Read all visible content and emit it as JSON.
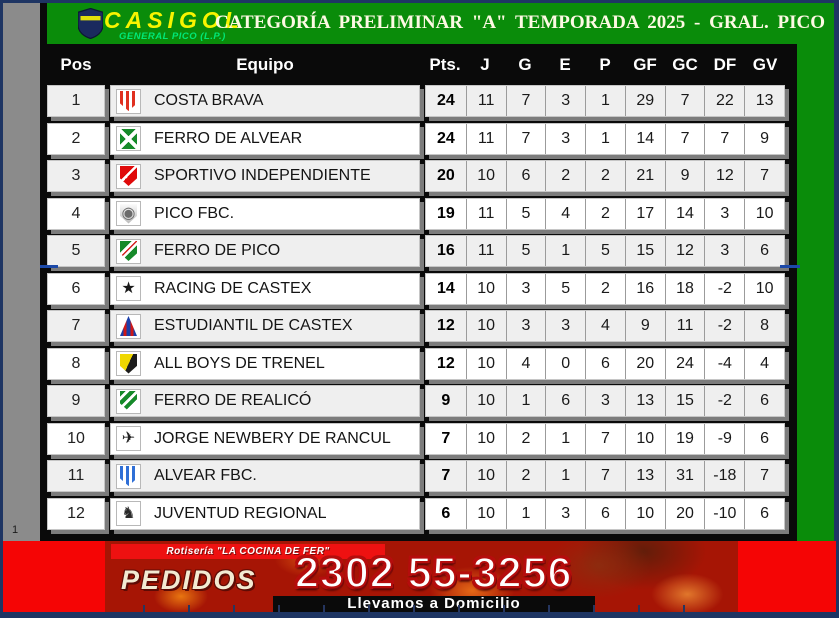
{
  "window": {
    "row_indicator": "1"
  },
  "header": {
    "brand": "CASIGOL",
    "brand_sub": "GENERAL PICO (L.P.)",
    "title": "CATEGORÍA PRELIMINAR \"A\" TEMPORADA 2025 - GRAL. PICO"
  },
  "colors": {
    "band_green": "#0a8c0a",
    "frame_navy": "#1e3563",
    "banner_red": "#f50505",
    "row_alt": "#efefef",
    "brand_yellow": "#f8f400",
    "brand_sub_green": "#00e878"
  },
  "table": {
    "columns": [
      "Pos",
      "Equipo",
      "Pts.",
      "J",
      "G",
      "E",
      "P",
      "GF",
      "GC",
      "DF",
      "GV"
    ],
    "rows": [
      {
        "pos": 1,
        "team": "COSTA BRAVA",
        "pts": 24,
        "j": 11,
        "g": 7,
        "e": 3,
        "p": 1,
        "gf": 29,
        "gc": 7,
        "df": 22,
        "gv": 13,
        "badge": {
          "icon": "costa-brava-badge",
          "shape": "shield",
          "bg": "repeating-linear-gradient(90deg,#e03020 0 3px,#ffffff 3px 6px)"
        }
      },
      {
        "pos": 2,
        "team": "FERRO DE ALVEAR",
        "pts": 24,
        "j": 11,
        "g": 7,
        "e": 3,
        "p": 1,
        "gf": 14,
        "gc": 7,
        "df": 7,
        "gv": 9,
        "badge": {
          "icon": "ferro-de-alvear-badge",
          "shape": "square",
          "bg": "linear-gradient(45deg, rgba(255,255,255,0) 43%, #ffffff 43% 57%, rgba(255,255,255,0) 57%), linear-gradient(135deg, rgba(255,255,255,0) 43%, #ffffff 43% 57%, rgba(255,255,255,0) 57%), #168a2a"
        }
      },
      {
        "pos": 3,
        "team": "SPORTIVO INDEPENDIENTE",
        "pts": 20,
        "j": 10,
        "g": 6,
        "e": 2,
        "p": 2,
        "gf": 21,
        "gc": 9,
        "df": 12,
        "gv": 7,
        "badge": {
          "icon": "sportivo-independiente-badge",
          "shape": "shield",
          "bg": "linear-gradient(135deg,#e00a0a 0 40%,#ffffff 40% 50%,#e00a0a 50% 100%)"
        }
      },
      {
        "pos": 4,
        "team": "PICO FBC.",
        "pts": 19,
        "j": 11,
        "g": 5,
        "e": 4,
        "p": 2,
        "gf": 17,
        "gc": 14,
        "df": 3,
        "gv": 10,
        "badge": {
          "icon": "pico-fbc-badge",
          "shape": "shield",
          "bg": "linear-gradient(#fbfbfb,#b9b9b9)",
          "glyph": "◉",
          "glyphColor": "#6b6b6b"
        }
      },
      {
        "pos": 5,
        "team": "FERRO DE PICO",
        "pts": 16,
        "j": 11,
        "g": 5,
        "e": 1,
        "p": 5,
        "gf": 15,
        "gc": 12,
        "df": 3,
        "gv": 6,
        "badge": {
          "icon": "ferro-de-pico-badge",
          "shape": "shield",
          "bg": "linear-gradient(135deg,#168a2a 0 32%,#ffffff 32% 42%,#d42020 42% 48%,#ffffff 48% 58%,#168a2a 58% 100%)"
        }
      },
      {
        "pos": 6,
        "team": "RACING DE CASTEX",
        "pts": 14,
        "j": 10,
        "g": 3,
        "e": 5,
        "p": 2,
        "gf": 16,
        "gc": 18,
        "df": -2,
        "gv": 10,
        "badge": {
          "icon": "racing-de-castex-badge",
          "shape": "square",
          "bg": "#ffffff",
          "glyph": "★",
          "glyphColor": "#1a1a1a"
        }
      },
      {
        "pos": 7,
        "team": "ESTUDIANTIL DE CASTEX",
        "pts": 12,
        "j": 10,
        "g": 3,
        "e": 3,
        "p": 4,
        "gf": 9,
        "gc": 11,
        "df": -2,
        "gv": 8,
        "badge": {
          "icon": "estudiantil-de-castex-badge",
          "shape": "triangle",
          "bg": "linear-gradient(90deg,#1b3faa 0 22%,#cf1818 22% 39%,#1b3faa 39% 61%,#cf1818 61% 78%,#1b3faa 78% 100%)"
        }
      },
      {
        "pos": 8,
        "team": "ALL BOYS DE TRENEL",
        "pts": 12,
        "j": 10,
        "g": 4,
        "e": 0,
        "p": 6,
        "gf": 20,
        "gc": 24,
        "df": -4,
        "gv": 4,
        "badge": {
          "icon": "all-boys-de-trenel-badge",
          "shape": "shield",
          "bg": "linear-gradient(115deg,#f0d800 0 50%,#1c1c1c 50% 100%)"
        }
      },
      {
        "pos": 9,
        "team": "FERRO DE REALICÓ",
        "pts": 9,
        "j": 10,
        "g": 1,
        "e": 6,
        "p": 3,
        "gf": 13,
        "gc": 15,
        "df": -2,
        "gv": 6,
        "badge": {
          "icon": "ferro-de-realico-badge",
          "shape": "shield",
          "bg": "repeating-linear-gradient(135deg,#168a2a 0 4px,#ffffff 4px 7px)"
        }
      },
      {
        "pos": 10,
        "team": "JORGE NEWBERY DE RANCUL",
        "pts": 7,
        "j": 10,
        "g": 2,
        "e": 1,
        "p": 7,
        "gf": 10,
        "gc": 19,
        "df": -9,
        "gv": 6,
        "badge": {
          "icon": "jorge-newbery-badge",
          "shape": "square",
          "bg": "#ffffff",
          "glyph": "✈",
          "glyphColor": "#222222"
        }
      },
      {
        "pos": 11,
        "team": "ALVEAR FBC.",
        "pts": 7,
        "j": 10,
        "g": 2,
        "e": 1,
        "p": 7,
        "gf": 13,
        "gc": 31,
        "df": -18,
        "gv": 7,
        "badge": {
          "icon": "alvear-fbc-badge",
          "shape": "shield",
          "bg": "repeating-linear-gradient(90deg,#2f6fd6 0 3px,#ffffff 3px 6px)"
        }
      },
      {
        "pos": 12,
        "team": "JUVENTUD REGIONAL",
        "pts": 6,
        "j": 10,
        "g": 1,
        "e": 3,
        "p": 6,
        "gf": 10,
        "gc": 20,
        "df": -10,
        "gv": 6,
        "badge": {
          "icon": "juventud-regional-badge",
          "shape": "square",
          "bg": "#ffffff",
          "glyph": "♞",
          "glyphColor": "#2a2a2a"
        }
      }
    ],
    "stat_keys": [
      "pts",
      "j",
      "g",
      "e",
      "p",
      "gf",
      "gc",
      "df",
      "gv"
    ]
  },
  "banner": {
    "line1": "Rotisería \"LA COCINA DE FER\"",
    "pedidos": "PEDIDOS",
    "phone": "2302 55-3256",
    "line3": "Llevamos a Domicilio"
  }
}
